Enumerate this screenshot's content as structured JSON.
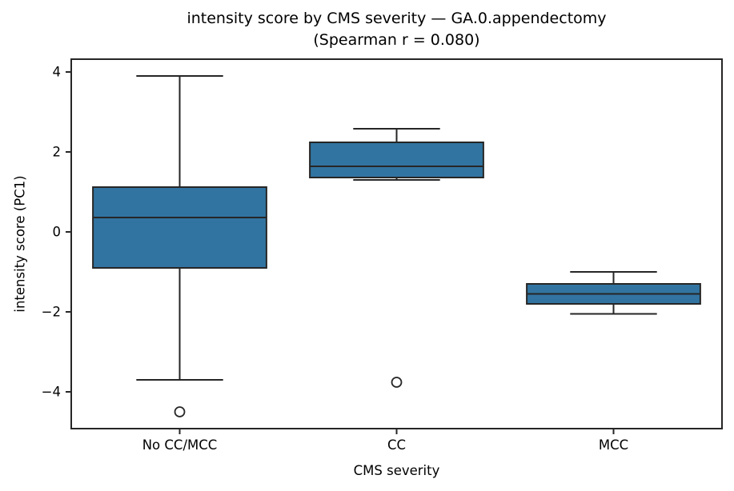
{
  "chart_data": {
    "type": "box",
    "title": "intensity score by CMS severity — GA.0.appendectomy",
    "subtitle": "(Spearman r = 0.080)",
    "xlabel": "CMS severity",
    "ylabel": "intensity score (PC1)",
    "categories": [
      "No CC/MCC",
      "CC",
      "MCC"
    ],
    "series": [
      {
        "name": "No CC/MCC",
        "whisker_low": -3.7,
        "q1": -0.9,
        "median": 0.36,
        "q3": 1.12,
        "whisker_high": 3.9,
        "outliers": [
          -4.5
        ]
      },
      {
        "name": "CC",
        "whisker_low": 1.3,
        "q1": 1.36,
        "median": 1.64,
        "q3": 2.24,
        "whisker_high": 2.58,
        "outliers": [
          -3.76
        ]
      },
      {
        "name": "MCC",
        "whisker_low": -2.05,
        "q1": -1.8,
        "median": -1.55,
        "q3": -1.3,
        "whisker_high": -1.0,
        "outliers": []
      }
    ],
    "yticks": [
      {
        "value": 4,
        "label": "4"
      },
      {
        "value": 2,
        "label": "2"
      },
      {
        "value": 0,
        "label": "0"
      },
      {
        "value": -2,
        "label": "−2"
      },
      {
        "value": -4,
        "label": "−4"
      }
    ],
    "ylim": [
      -4.92,
      4.32
    ],
    "grid": false,
    "legend": null,
    "colors": {
      "box_fill": "#3274a1",
      "line": "#262626",
      "text": "#000000",
      "background": "#ffffff"
    }
  }
}
